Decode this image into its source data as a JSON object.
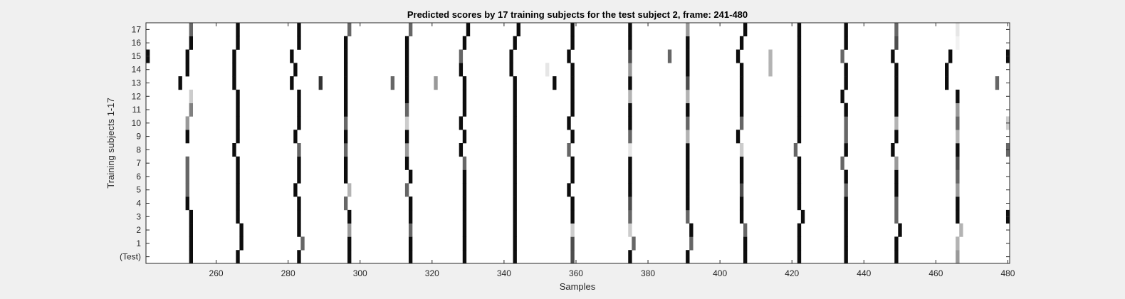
{
  "chart_data": {
    "type": "heatmap",
    "title": "Predicted scores by 17 training subjects for the test subject 2, frame: 241-480",
    "xlabel": "Samples",
    "ylabel": "Training subjects 1-17",
    "xlim": [
      241,
      480
    ],
    "x_ticks": [
      260,
      280,
      300,
      320,
      340,
      360,
      380,
      400,
      420,
      440,
      460,
      480
    ],
    "y_tick_labels": [
      "(Test)",
      "1",
      "2",
      "3",
      "4",
      "5",
      "6",
      "7",
      "8",
      "9",
      "10",
      "11",
      "12",
      "13",
      "14",
      "15",
      "16",
      "17"
    ],
    "colormap": "gray (1 = white, 0 = black)",
    "background_value": 1,
    "grid": false,
    "rows": [
      {
        "label": "(Test)",
        "dark": [
          [
            253,
            0.05
          ],
          [
            266,
            0.05
          ],
          [
            283,
            0.05
          ],
          [
            297,
            0.05
          ],
          [
            314,
            0.05
          ],
          [
            329,
            0.05
          ],
          [
            343,
            0.05
          ],
          [
            359,
            0.3
          ],
          [
            375,
            0.05
          ],
          [
            391,
            0.05
          ],
          [
            407,
            0.05
          ],
          [
            422,
            0.05
          ],
          [
            435,
            0.05
          ],
          [
            449,
            0.05
          ],
          [
            466,
            0.6
          ]
        ]
      },
      {
        "label": "1",
        "dark": [
          [
            253,
            0.05
          ],
          [
            267,
            0.05
          ],
          [
            284,
            0.4
          ],
          [
            297,
            0.05
          ],
          [
            314,
            0.05
          ],
          [
            329,
            0.05
          ],
          [
            343,
            0.05
          ],
          [
            359,
            0.3
          ],
          [
            376,
            0.4
          ],
          [
            392,
            0.4
          ],
          [
            407,
            0.05
          ],
          [
            422,
            0.05
          ],
          [
            435,
            0.05
          ],
          [
            449,
            0.05
          ],
          [
            466,
            0.7
          ]
        ]
      },
      {
        "label": "2",
        "dark": [
          [
            253,
            0.05
          ],
          [
            267,
            0.05
          ],
          [
            283,
            0.05
          ],
          [
            297,
            0.6
          ],
          [
            314,
            0.4
          ],
          [
            329,
            0.05
          ],
          [
            343,
            0.05
          ],
          [
            359,
            0.8
          ],
          [
            375,
            0.8
          ],
          [
            392,
            0.05
          ],
          [
            407,
            0.4
          ],
          [
            422,
            0.05
          ],
          [
            435,
            0.05
          ],
          [
            450,
            0.05
          ],
          [
            467,
            0.7
          ]
        ]
      },
      {
        "label": "3",
        "dark": [
          [
            253,
            0.05
          ],
          [
            266,
            0.05
          ],
          [
            283,
            0.05
          ],
          [
            297,
            0.05
          ],
          [
            314,
            0.05
          ],
          [
            329,
            0.05
          ],
          [
            343,
            0.05
          ],
          [
            359,
            0.05
          ],
          [
            375,
            0.4
          ],
          [
            391,
            0.4
          ],
          [
            406,
            0.05
          ],
          [
            423,
            0.05
          ],
          [
            435,
            0.05
          ],
          [
            449,
            0.4
          ],
          [
            466,
            0.05
          ],
          [
            480,
            0.05
          ]
        ]
      },
      {
        "label": "4",
        "dark": [
          [
            252,
            0.05
          ],
          [
            266,
            0.05
          ],
          [
            283,
            0.05
          ],
          [
            296,
            0.4
          ],
          [
            314,
            0.05
          ],
          [
            329,
            0.05
          ],
          [
            343,
            0.05
          ],
          [
            359,
            0.05
          ],
          [
            375,
            0.3
          ],
          [
            391,
            0.05
          ],
          [
            406,
            0.05
          ],
          [
            422,
            0.05
          ],
          [
            435,
            0.05
          ],
          [
            449,
            0.4
          ],
          [
            466,
            0.05
          ]
        ]
      },
      {
        "label": "5",
        "dark": [
          [
            252,
            0.4
          ],
          [
            266,
            0.05
          ],
          [
            282,
            0.05
          ],
          [
            297,
            0.7
          ],
          [
            313,
            0.4
          ],
          [
            329,
            0.05
          ],
          [
            343,
            0.05
          ],
          [
            358,
            0.05
          ],
          [
            375,
            0.05
          ],
          [
            391,
            0.05
          ],
          [
            406,
            0.3
          ],
          [
            422,
            0.05
          ],
          [
            435,
            0.4
          ],
          [
            449,
            0.05
          ],
          [
            466,
            0.6
          ]
        ]
      },
      {
        "label": "6",
        "dark": [
          [
            252,
            0.4
          ],
          [
            266,
            0.05
          ],
          [
            283,
            0.05
          ],
          [
            296,
            0.05
          ],
          [
            314,
            0.05
          ],
          [
            329,
            0.05
          ],
          [
            343,
            0.05
          ],
          [
            359,
            0.05
          ],
          [
            375,
            0.05
          ],
          [
            391,
            0.05
          ],
          [
            406,
            0.05
          ],
          [
            422,
            0.05
          ],
          [
            435,
            0.05
          ],
          [
            449,
            0.05
          ],
          [
            466,
            0.4
          ]
        ]
      },
      {
        "label": "7",
        "dark": [
          [
            252,
            0.4
          ],
          [
            266,
            0.05
          ],
          [
            283,
            0.05
          ],
          [
            296,
            0.05
          ],
          [
            313,
            0.05
          ],
          [
            329,
            0.4
          ],
          [
            343,
            0.05
          ],
          [
            359,
            0.05
          ],
          [
            375,
            0.05
          ],
          [
            391,
            0.05
          ],
          [
            406,
            0.05
          ],
          [
            422,
            0.05
          ],
          [
            434,
            0.4
          ],
          [
            449,
            0.6
          ],
          [
            466,
            0.3
          ]
        ]
      },
      {
        "label": "8",
        "dark": [
          [
            265,
            0.05
          ],
          [
            283,
            0.4
          ],
          [
            296,
            0.4
          ],
          [
            313,
            0.6
          ],
          [
            328,
            0.05
          ],
          [
            343,
            0.05
          ],
          [
            358,
            0.4
          ],
          [
            375,
            0.9
          ],
          [
            391,
            0.05
          ],
          [
            406,
            0.8
          ],
          [
            421,
            0.4
          ],
          [
            435,
            0.05
          ],
          [
            448,
            0.05
          ],
          [
            466,
            0.05
          ],
          [
            480,
            0.4
          ]
        ]
      },
      {
        "label": "9",
        "dark": [
          [
            252,
            0.05
          ],
          [
            266,
            0.05
          ],
          [
            282,
            0.05
          ],
          [
            296,
            0.05
          ],
          [
            313,
            0.05
          ],
          [
            329,
            0.05
          ],
          [
            343,
            0.05
          ],
          [
            359,
            0.05
          ],
          [
            375,
            0.4
          ],
          [
            391,
            0.7
          ],
          [
            405,
            0.05
          ],
          [
            422,
            0.05
          ],
          [
            435,
            0.4
          ],
          [
            449,
            0.05
          ],
          [
            466,
            0.7
          ]
        ]
      },
      {
        "label": "10",
        "dark": [
          [
            252,
            0.6
          ],
          [
            266,
            0.05
          ],
          [
            283,
            0.05
          ],
          [
            296,
            0.4
          ],
          [
            313,
            0.8
          ],
          [
            328,
            0.05
          ],
          [
            343,
            0.05
          ],
          [
            358,
            0.05
          ],
          [
            375,
            0.05
          ],
          [
            391,
            0.4
          ],
          [
            406,
            0.4
          ],
          [
            422,
            0.05
          ],
          [
            435,
            0.4
          ],
          [
            449,
            0.7
          ],
          [
            466,
            0.4
          ],
          [
            480,
            0.8
          ]
        ]
      },
      {
        "label": "11",
        "dark": [
          [
            253,
            0.5
          ],
          [
            266,
            0.05
          ],
          [
            283,
            0.05
          ],
          [
            296,
            0.05
          ],
          [
            313,
            0.4
          ],
          [
            329,
            0.05
          ],
          [
            343,
            0.05
          ],
          [
            359,
            0.05
          ],
          [
            375,
            0.05
          ],
          [
            391,
            0.05
          ],
          [
            406,
            0.05
          ],
          [
            422,
            0.05
          ],
          [
            435,
            0.05
          ],
          [
            449,
            0.05
          ],
          [
            466,
            0.6
          ]
        ]
      },
      {
        "label": "12",
        "dark": [
          [
            253,
            0.8
          ],
          [
            266,
            0.05
          ],
          [
            283,
            0.05
          ],
          [
            296,
            0.05
          ],
          [
            313,
            0.05
          ],
          [
            329,
            0.05
          ],
          [
            343,
            0.05
          ],
          [
            359,
            0.05
          ],
          [
            375,
            0.7
          ],
          [
            391,
            0.7
          ],
          [
            406,
            0.05
          ],
          [
            422,
            0.05
          ],
          [
            434,
            0.05
          ],
          [
            449,
            0.05
          ],
          [
            466,
            0.05
          ]
        ]
      },
      {
        "label": "13",
        "dark": [
          [
            250,
            0.05
          ],
          [
            265,
            0.05
          ],
          [
            281,
            0.05
          ],
          [
            289,
            0.2
          ],
          [
            296,
            0.05
          ],
          [
            309,
            0.4
          ],
          [
            313,
            0.05
          ],
          [
            321,
            0.6
          ],
          [
            329,
            0.05
          ],
          [
            343,
            0.05
          ],
          [
            354,
            0.05
          ],
          [
            359,
            0.05
          ],
          [
            375,
            0.05
          ],
          [
            391,
            0.3
          ],
          [
            406,
            0.05
          ],
          [
            422,
            0.05
          ],
          [
            435,
            0.05
          ],
          [
            449,
            0.05
          ],
          [
            463,
            0.05
          ],
          [
            477,
            0.4
          ]
        ]
      },
      {
        "label": "14",
        "dark": [
          [
            252,
            0.05
          ],
          [
            265,
            0.05
          ],
          [
            282,
            0.05
          ],
          [
            296,
            0.05
          ],
          [
            313,
            0.05
          ],
          [
            328,
            0.05
          ],
          [
            342,
            0.05
          ],
          [
            352,
            0.9
          ],
          [
            359,
            0.05
          ],
          [
            375,
            0.6
          ],
          [
            391,
            0.05
          ],
          [
            406,
            0.05
          ],
          [
            414,
            0.7
          ],
          [
            422,
            0.05
          ],
          [
            435,
            0.05
          ],
          [
            449,
            0.05
          ],
          [
            463,
            0.05
          ]
        ]
      },
      {
        "label": "15",
        "dark": [
          [
            241,
            0.05
          ],
          [
            252,
            0.05
          ],
          [
            265,
            0.05
          ],
          [
            281,
            0.05
          ],
          [
            296,
            0.05
          ],
          [
            313,
            0.05
          ],
          [
            328,
            0.4
          ],
          [
            342,
            0.05
          ],
          [
            358,
            0.05
          ],
          [
            375,
            0.3
          ],
          [
            386,
            0.4
          ],
          [
            391,
            0.05
          ],
          [
            405,
            0.05
          ],
          [
            414,
            0.7
          ],
          [
            422,
            0.05
          ],
          [
            434,
            0.4
          ],
          [
            448,
            0.05
          ],
          [
            464,
            0.05
          ],
          [
            480,
            0.05
          ]
        ]
      },
      {
        "label": "16",
        "dark": [
          [
            253,
            0.05
          ],
          [
            266,
            0.05
          ],
          [
            283,
            0.05
          ],
          [
            296,
            0.05
          ],
          [
            313,
            0.05
          ],
          [
            329,
            0.05
          ],
          [
            343,
            0.05
          ],
          [
            359,
            0.05
          ],
          [
            375,
            0.05
          ],
          [
            391,
            0.05
          ],
          [
            406,
            0.05
          ],
          [
            422,
            0.05
          ],
          [
            435,
            0.05
          ],
          [
            449,
            0.3
          ],
          [
            466,
            0.95
          ]
        ]
      },
      {
        "label": "17",
        "dark": [
          [
            253,
            0.4
          ],
          [
            266,
            0.05
          ],
          [
            283,
            0.05
          ],
          [
            297,
            0.4
          ],
          [
            314,
            0.4
          ],
          [
            330,
            0.05
          ],
          [
            344,
            0.05
          ],
          [
            359,
            0.05
          ],
          [
            375,
            0.05
          ],
          [
            391,
            0.6
          ],
          [
            407,
            0.05
          ],
          [
            422,
            0.05
          ],
          [
            435,
            0.05
          ],
          [
            449,
            0.4
          ],
          [
            466,
            0.9
          ]
        ]
      }
    ]
  }
}
